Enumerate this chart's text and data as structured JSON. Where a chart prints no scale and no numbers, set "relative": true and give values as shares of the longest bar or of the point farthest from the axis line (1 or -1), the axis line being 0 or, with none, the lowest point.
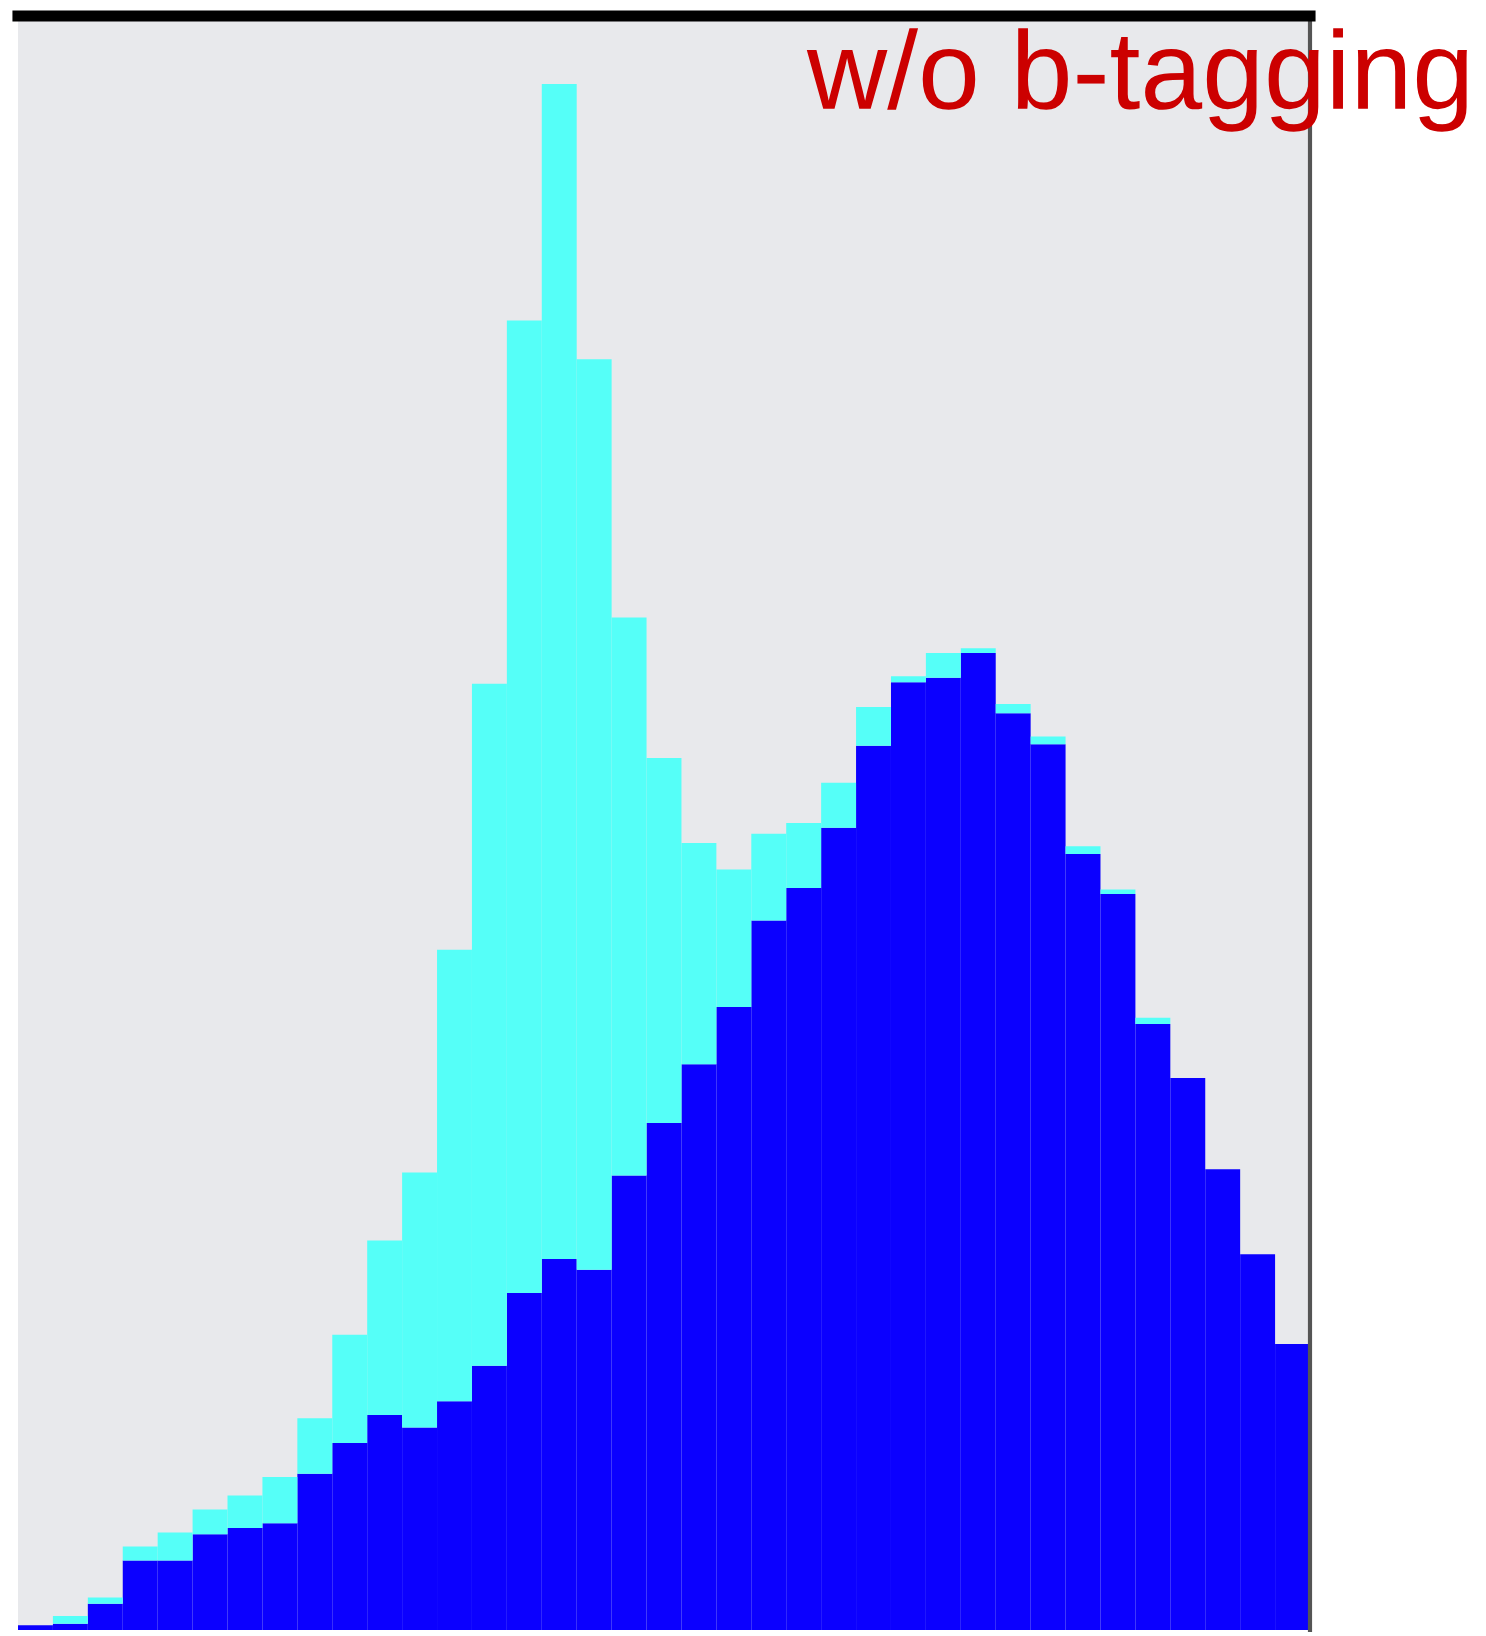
{
  "chart_data": {
    "type": "bar",
    "stacked": true,
    "relative": true,
    "annotations": [
      "w/o b-tagging"
    ],
    "categories": [
      null,
      null,
      null,
      null,
      null,
      null,
      null,
      null,
      null,
      null,
      null,
      null,
      null,
      null,
      null,
      null,
      null,
      null,
      null,
      null,
      null,
      null,
      null,
      null,
      null,
      null,
      null,
      null,
      null,
      null,
      null,
      null,
      null,
      null,
      null,
      null,
      null
    ],
    "series": [
      {
        "color": "#0b00ff",
        "values": [
          0.003,
          0.004,
          0.017,
          0.045,
          0.045,
          0.062,
          0.066,
          0.069,
          0.101,
          0.121,
          0.139,
          0.131,
          0.148,
          0.171,
          0.218,
          0.24,
          0.233,
          0.294,
          0.328,
          0.366,
          0.403,
          0.459,
          0.48,
          0.519,
          0.572,
          0.613,
          0.616,
          0.632,
          0.593,
          0.573,
          0.502,
          0.476,
          0.392,
          0.357,
          0.298,
          0.243,
          0.185
        ]
      },
      {
        "color": "#55fff8",
        "values": [
          0,
          0.005,
          0.004,
          0.009,
          0.018,
          0.016,
          0.021,
          0.03,
          0.036,
          0.07,
          0.113,
          0.165,
          0.292,
          0.441,
          0.629,
          0.76,
          0.589,
          0.361,
          0.236,
          0.143,
          0.089,
          0.056,
          0.042,
          0.029,
          0.025,
          0.004,
          0.016,
          0.003,
          0.006,
          0.005,
          0.005,
          0.003,
          0.004,
          0,
          0,
          0,
          0
        ]
      }
    ]
  }
}
